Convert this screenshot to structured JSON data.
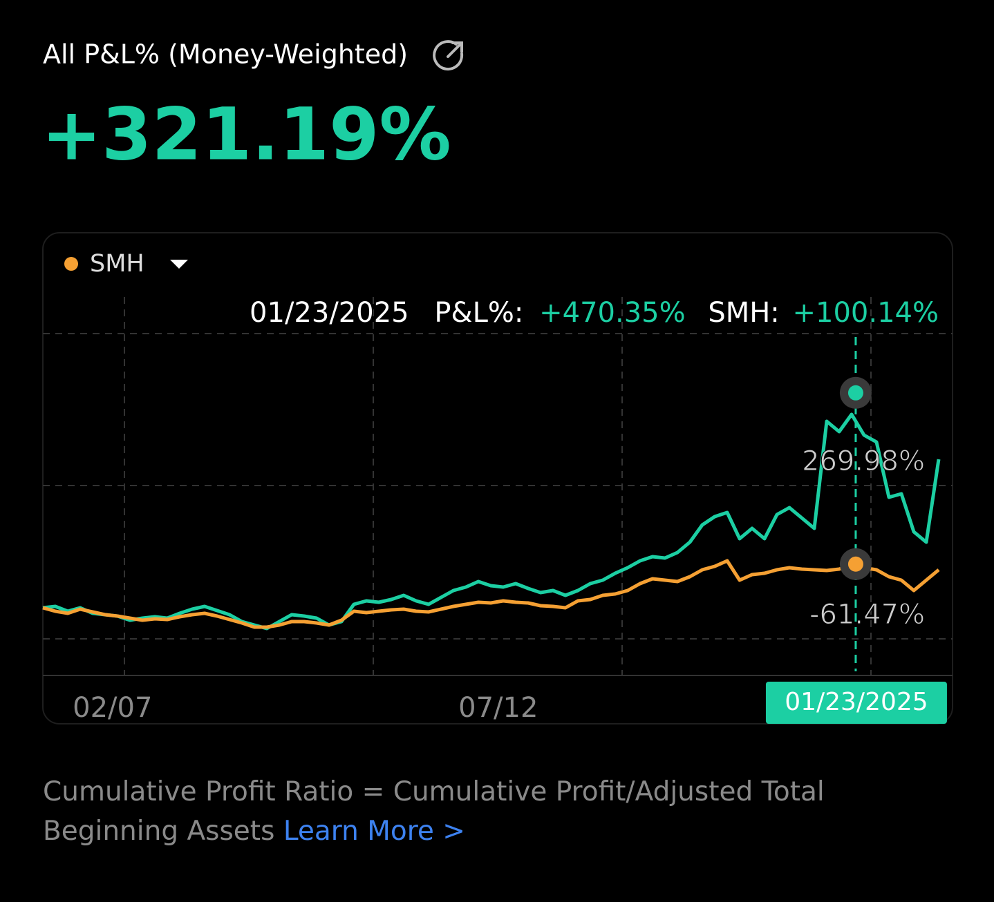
{
  "header": {
    "title": "All P&L% (Money-Weighted)",
    "value": "+321.19%"
  },
  "chart_data": {
    "type": "line",
    "xlim": [
      0,
      72
    ],
    "xticks": [
      {
        "value": 5.6,
        "label": "02/07"
      },
      {
        "value": 36.6,
        "label": "07/12"
      }
    ],
    "ylim": [
      -140.6,
      677.6
    ],
    "yticks": [
      {
        "value": 269.98,
        "label": "269.98%"
      },
      {
        "value": -61.47,
        "label": "-61.47%"
      }
    ],
    "series": [
      {
        "color": "#1ccfa3",
        "values": [
          5.7,
          8.7,
          -1.7,
          5.7,
          -6.2,
          -9.2,
          -12.2,
          -21.1,
          -16.7,
          -13.7,
          -16.7,
          -6.2,
          2.8,
          8.7,
          -0.2,
          -9.2,
          -24.1,
          -31.6,
          -39.1,
          -24.1,
          -9.2,
          -12.2,
          -16.7,
          -31.6,
          -24.1,
          13.2,
          20.7,
          17.7,
          23.7,
          32.6,
          20.7,
          13.2,
          28.1,
          43.1,
          50.5,
          62.5,
          53.5,
          50.5,
          58.0,
          47.5,
          38.6,
          43.1,
          32.6,
          43.1,
          58.0,
          65.5,
          80.4,
          92.3,
          107.3,
          116.2,
          113.2,
          125.2,
          147.6,
          184.9,
          202.8,
          211.8,
          155.0,
          177.4,
          155.0,
          207.3,
          222.2,
          199.8,
          177.4,
          408.8,
          386.5,
          423.8,
          379.0,
          364.1,
          244.6,
          252.1,
          170.0,
          147.6,
          326.7
        ]
      },
      {
        "name": "SMH",
        "color": "#f5a033",
        "values": [
          5.7,
          -1.7,
          -6.2,
          2.8,
          -3.2,
          -9.2,
          -12.2,
          -16.7,
          -21.1,
          -18.1,
          -19.6,
          -13.7,
          -9.2,
          -6.2,
          -12.2,
          -19.6,
          -27.1,
          -36.1,
          -36.1,
          -31.6,
          -24.1,
          -24.1,
          -27.1,
          -31.6,
          -21.1,
          -1.7,
          -4.7,
          -1.7,
          1.3,
          2.8,
          -1.7,
          -3.2,
          2.8,
          8.7,
          13.2,
          17.7,
          16.2,
          20.7,
          17.7,
          16.2,
          10.2,
          8.7,
          5.7,
          20.7,
          23.7,
          32.6,
          35.6,
          43.1,
          58.0,
          68.4,
          65.5,
          62.5,
          72.9,
          87.9,
          95.3,
          107.3,
          65.5,
          77.4,
          80.4,
          87.9,
          92.3,
          89.3,
          87.9,
          86.4,
          89.3,
          98.3,
          92.3,
          87.9,
          72.9,
          65.5,
          43.1,
          65.5,
          87.9
        ]
      }
    ],
    "cursor": {
      "x": 65.33,
      "label": "01/23/2025"
    },
    "tooltip": {
      "date": "01/23/2025",
      "items": [
        {
          "label": "P&L%:",
          "value": 470.35,
          "value_label": "+470.35%"
        },
        {
          "label": "SMH:",
          "value": 100.14,
          "value_label": "+100.14%"
        }
      ]
    }
  },
  "footer": {
    "text": "Cumulative Profit Ratio = Cumulative Profit/Adjusted Total Beginning Assets",
    "link": "Learn More >"
  }
}
